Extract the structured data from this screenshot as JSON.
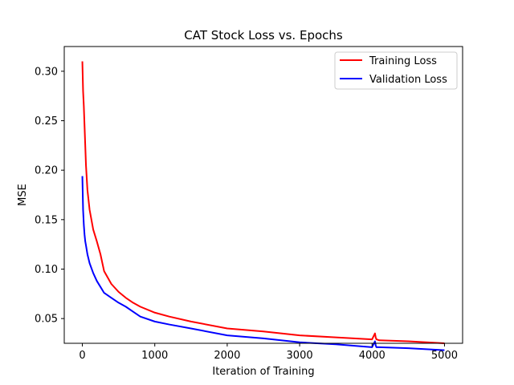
{
  "chart_data": {
    "type": "line",
    "title": "CAT Stock Loss vs. Epochs",
    "xlabel": "Iteration of Training",
    "ylabel": "MSE",
    "xlim": [
      -250,
      5250
    ],
    "ylim": [
      0.025,
      0.325
    ],
    "xticks": [
      0,
      1000,
      2000,
      3000,
      4000,
      5000
    ],
    "yticks": [
      0.05,
      0.1,
      0.15,
      0.2,
      0.25,
      0.3
    ],
    "xtick_labels": [
      "0",
      "1000",
      "2000",
      "3000",
      "4000",
      "5000"
    ],
    "ytick_labels": [
      "0.05",
      "0.10",
      "0.15",
      "0.20",
      "0.25",
      "0.30"
    ],
    "grid": false,
    "legend_position": "top-right",
    "series": [
      {
        "name": "Training Loss",
        "color": "#ff0000",
        "x": [
          0,
          10,
          20,
          30,
          40,
          50,
          70,
          100,
          150,
          200,
          250,
          300,
          400,
          500,
          600,
          700,
          800,
          1000,
          1200,
          1500,
          2000,
          2500,
          3000,
          3500,
          4000,
          4040,
          4050,
          4060,
          4100,
          4500,
          5000
        ],
        "y": [
          0.31,
          0.28,
          0.265,
          0.245,
          0.225,
          0.205,
          0.18,
          0.16,
          0.14,
          0.128,
          0.115,
          0.098,
          0.085,
          0.077,
          0.071,
          0.066,
          0.062,
          0.056,
          0.052,
          0.047,
          0.04,
          0.037,
          0.033,
          0.031,
          0.029,
          0.035,
          0.031,
          0.029,
          0.028,
          0.027,
          0.025
        ]
      },
      {
        "name": "Validation Loss",
        "color": "#0000ff",
        "x": [
          0,
          10,
          20,
          30,
          40,
          50,
          70,
          100,
          150,
          200,
          250,
          300,
          400,
          500,
          600,
          700,
          800,
          1000,
          1200,
          1500,
          2000,
          2500,
          3000,
          3500,
          4000,
          4040,
          4050,
          4060,
          4100,
          4500,
          5000
        ],
        "y": [
          0.194,
          0.16,
          0.145,
          0.135,
          0.128,
          0.124,
          0.115,
          0.106,
          0.096,
          0.088,
          0.082,
          0.076,
          0.071,
          0.066,
          0.062,
          0.057,
          0.052,
          0.047,
          0.044,
          0.04,
          0.033,
          0.03,
          0.026,
          0.024,
          0.021,
          0.027,
          0.023,
          0.021,
          0.021,
          0.02,
          0.018
        ]
      }
    ]
  }
}
